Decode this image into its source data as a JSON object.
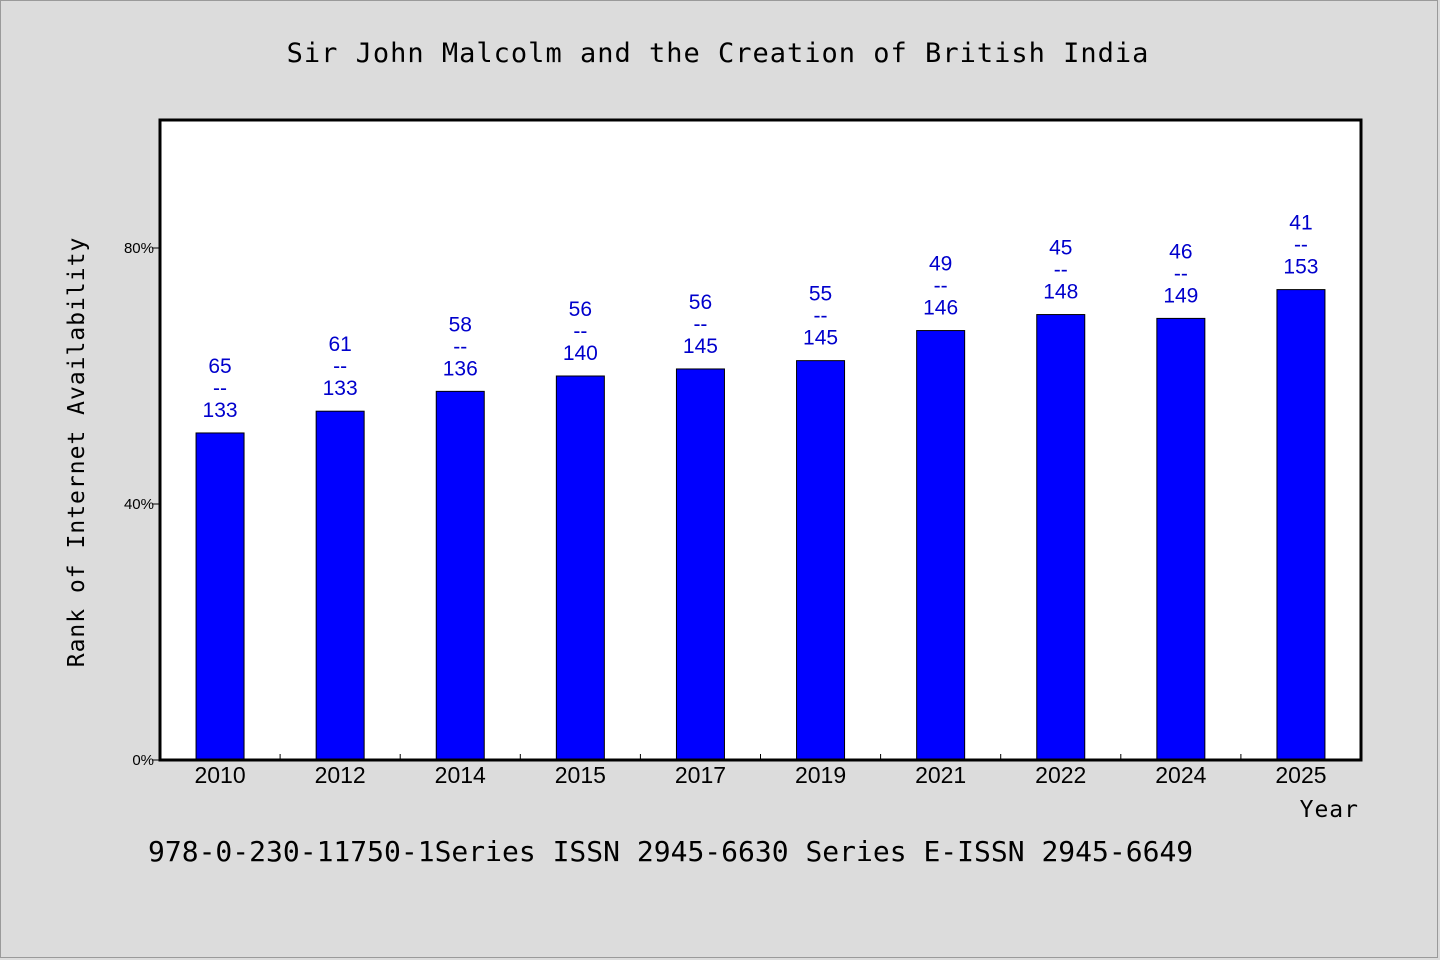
{
  "chart_data": {
    "type": "bar",
    "title": "Sir John Malcolm and the Creation of British India",
    "xlabel": "Year",
    "ylabel": "Rank of Internet Availability",
    "categories": [
      "2010",
      "2012",
      "2014",
      "2015",
      "2017",
      "2019",
      "2021",
      "2022",
      "2024",
      "2025"
    ],
    "values": [
      0.511,
      0.545,
      0.576,
      0.6,
      0.611,
      0.624,
      0.671,
      0.696,
      0.69,
      0.735
    ],
    "data_labels": [
      {
        "top": "65",
        "sep": "--",
        "bottom": "133"
      },
      {
        "top": "61",
        "sep": "--",
        "bottom": "133"
      },
      {
        "top": "58",
        "sep": "--",
        "bottom": "136"
      },
      {
        "top": "56",
        "sep": "--",
        "bottom": "140"
      },
      {
        "top": "56",
        "sep": "--",
        "bottom": "145"
      },
      {
        "top": "55",
        "sep": "--",
        "bottom": "145"
      },
      {
        "top": "49",
        "sep": "--",
        "bottom": "146"
      },
      {
        "top": "45",
        "sep": "--",
        "bottom": "148"
      },
      {
        "top": "46",
        "sep": "--",
        "bottom": "149"
      },
      {
        "top": "41",
        "sep": "--",
        "bottom": "153"
      }
    ],
    "ylim": [
      0,
      1.0
    ],
    "yticks": [
      0,
      0.4,
      0.8
    ],
    "ytick_labels": [
      "0%",
      "40%",
      "80%"
    ],
    "grid": false,
    "legend": "none",
    "bar_color": "#0000ff",
    "label_color": "#0000cc",
    "background_color": "#dcdcdc",
    "plot_background_color": "#ffffff"
  },
  "footer": "978-0-230-11750-1Series ISSN 2945-6630 Series E-ISSN 2945-6649"
}
